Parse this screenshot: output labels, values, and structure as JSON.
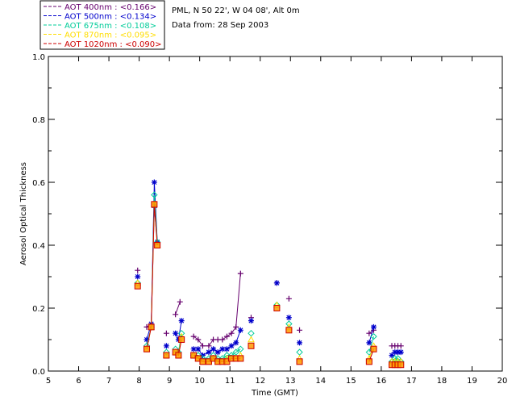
{
  "header": {
    "location": "PML, N 50 22', W 04 08', Alt 0m",
    "date_line": "Data from: 28 Sep 2003"
  },
  "chart_data": {
    "type": "scatter",
    "xlabel": "Time (GMT)",
    "ylabel": "Aerosol Optical Thickness",
    "xlim": [
      5,
      20
    ],
    "ylim": [
      0.0,
      1.0
    ],
    "x_ticks": [
      "5",
      "6",
      "7",
      "8",
      "9",
      "10",
      "11",
      "12",
      "13",
      "14",
      "15",
      "16",
      "17",
      "18",
      "19",
      "20"
    ],
    "y_ticks": [
      "0.0",
      "0.2",
      "0.4",
      "0.6",
      "0.8",
      "1.0"
    ],
    "grid": false,
    "legend_position": "top-left-outside",
    "series": [
      {
        "name": "AOT  400nm : <0.166>",
        "color": "#66006e",
        "marker": "plus",
        "segments": [
          [
            [
              7.95,
              0.32
            ]
          ],
          [
            [
              8.25,
              0.14
            ],
            [
              8.4,
              0.15
            ],
            [
              8.5,
              0.52
            ],
            [
              8.6,
              0.41
            ]
          ],
          [
            [
              8.9,
              0.12
            ]
          ],
          [
            [
              9.2,
              0.18
            ],
            [
              9.35,
              0.22
            ]
          ],
          [
            [
              9.8,
              0.11
            ],
            [
              9.95,
              0.1
            ],
            [
              10.1,
              0.08
            ],
            [
              10.3,
              0.08
            ],
            [
              10.45,
              0.1
            ],
            [
              10.6,
              0.1
            ],
            [
              10.75,
              0.1
            ],
            [
              10.9,
              0.11
            ],
            [
              11.05,
              0.12
            ],
            [
              11.2,
              0.14
            ],
            [
              11.35,
              0.31
            ]
          ],
          [
            [
              11.7,
              0.17
            ]
          ],
          [
            [
              12.55,
              0.28
            ]
          ],
          [
            [
              12.95,
              0.23
            ]
          ],
          [
            [
              13.3,
              0.13
            ]
          ],
          [
            [
              15.6,
              0.12
            ],
            [
              15.75,
              0.13
            ]
          ],
          [
            [
              16.35,
              0.08
            ],
            [
              16.45,
              0.08
            ],
            [
              16.55,
              0.08
            ],
            [
              16.65,
              0.08
            ]
          ]
        ]
      },
      {
        "name": "AOT  500nm : <0.134>",
        "color": "#0000cc",
        "marker": "star",
        "segments": [
          [
            [
              7.95,
              0.3
            ]
          ],
          [
            [
              8.25,
              0.1
            ],
            [
              8.4,
              0.15
            ],
            [
              8.5,
              0.6
            ],
            [
              8.6,
              0.41
            ]
          ],
          [
            [
              8.9,
              0.08
            ]
          ],
          [
            [
              9.2,
              0.12
            ],
            [
              9.3,
              0.1
            ],
            [
              9.4,
              0.16
            ]
          ],
          [
            [
              9.8,
              0.07
            ],
            [
              9.95,
              0.07
            ],
            [
              10.1,
              0.05
            ],
            [
              10.3,
              0.06
            ],
            [
              10.45,
              0.07
            ],
            [
              10.6,
              0.06
            ],
            [
              10.75,
              0.07
            ],
            [
              10.9,
              0.07
            ],
            [
              11.05,
              0.08
            ],
            [
              11.2,
              0.09
            ],
            [
              11.35,
              0.13
            ]
          ],
          [
            [
              11.7,
              0.16
            ]
          ],
          [
            [
              12.55,
              0.28
            ]
          ],
          [
            [
              12.95,
              0.17
            ]
          ],
          [
            [
              13.3,
              0.09
            ]
          ],
          [
            [
              15.6,
              0.09
            ],
            [
              15.75,
              0.14
            ]
          ],
          [
            [
              16.35,
              0.05
            ],
            [
              16.45,
              0.06
            ],
            [
              16.55,
              0.06
            ],
            [
              16.65,
              0.06
            ]
          ]
        ]
      },
      {
        "name": "AOT  675nm : <0.108>",
        "color": "#00cc99",
        "marker": "diamond",
        "segments": [
          [
            [
              7.95,
              0.28
            ]
          ],
          [
            [
              8.25,
              0.08
            ],
            [
              8.4,
              0.14
            ],
            [
              8.5,
              0.56
            ],
            [
              8.6,
              0.41
            ]
          ],
          [
            [
              8.9,
              0.06
            ]
          ],
          [
            [
              9.2,
              0.07
            ],
            [
              9.3,
              0.06
            ],
            [
              9.4,
              0.12
            ]
          ],
          [
            [
              9.8,
              0.05
            ],
            [
              9.95,
              0.05
            ],
            [
              10.1,
              0.04
            ],
            [
              10.3,
              0.04
            ],
            [
              10.45,
              0.05
            ],
            [
              10.6,
              0.04
            ],
            [
              10.75,
              0.04
            ],
            [
              10.9,
              0.05
            ],
            [
              11.05,
              0.05
            ],
            [
              11.2,
              0.06
            ],
            [
              11.35,
              0.07
            ]
          ],
          [
            [
              11.7,
              0.12
            ]
          ],
          [
            [
              12.55,
              0.21
            ]
          ],
          [
            [
              12.95,
              0.15
            ]
          ],
          [
            [
              13.3,
              0.06
            ]
          ],
          [
            [
              15.6,
              0.06
            ],
            [
              15.75,
              0.11
            ]
          ],
          [
            [
              16.35,
              0.03
            ],
            [
              16.45,
              0.04
            ],
            [
              16.55,
              0.04
            ],
            [
              16.65,
              0.03
            ]
          ]
        ]
      },
      {
        "name": "AOT  870nm : <0.095>",
        "color": "#ffdd00",
        "marker": "triangle",
        "segments": [
          [
            [
              7.95,
              0.28
            ]
          ],
          [
            [
              8.25,
              0.07
            ],
            [
              8.4,
              0.14
            ],
            [
              8.5,
              0.53
            ],
            [
              8.6,
              0.4
            ]
          ],
          [
            [
              8.9,
              0.05
            ]
          ],
          [
            [
              9.2,
              0.06
            ],
            [
              9.3,
              0.05
            ],
            [
              9.4,
              0.11
            ]
          ],
          [
            [
              9.8,
              0.05
            ],
            [
              9.95,
              0.04
            ],
            [
              10.1,
              0.03
            ],
            [
              10.3,
              0.03
            ],
            [
              10.45,
              0.04
            ],
            [
              10.6,
              0.03
            ],
            [
              10.75,
              0.03
            ],
            [
              10.9,
              0.04
            ],
            [
              11.05,
              0.04
            ],
            [
              11.2,
              0.04
            ],
            [
              11.35,
              0.05
            ]
          ],
          [
            [
              11.7,
              0.1
            ]
          ],
          [
            [
              12.55,
              0.21
            ]
          ],
          [
            [
              12.95,
              0.14
            ]
          ],
          [
            [
              13.3,
              0.04
            ]
          ],
          [
            [
              15.6,
              0.04
            ],
            [
              15.75,
              0.08
            ]
          ],
          [
            [
              16.35,
              0.03
            ],
            [
              16.45,
              0.03
            ],
            [
              16.55,
              0.03
            ],
            [
              16.65,
              0.03
            ]
          ]
        ]
      },
      {
        "name": "AOT 1020nm : <0.090>",
        "color": "#cc0000",
        "marker": "square",
        "segments": [
          [
            [
              7.95,
              0.27
            ]
          ],
          [
            [
              8.25,
              0.07
            ],
            [
              8.4,
              0.14
            ],
            [
              8.5,
              0.53
            ],
            [
              8.6,
              0.4
            ]
          ],
          [
            [
              8.9,
              0.05
            ]
          ],
          [
            [
              9.2,
              0.06
            ],
            [
              9.3,
              0.05
            ],
            [
              9.4,
              0.1
            ]
          ],
          [
            [
              9.8,
              0.05
            ],
            [
              9.95,
              0.04
            ],
            [
              10.1,
              0.03
            ],
            [
              10.3,
              0.03
            ],
            [
              10.45,
              0.04
            ],
            [
              10.6,
              0.03
            ],
            [
              10.75,
              0.03
            ],
            [
              10.9,
              0.03
            ],
            [
              11.05,
              0.04
            ],
            [
              11.2,
              0.04
            ],
            [
              11.35,
              0.04
            ]
          ],
          [
            [
              11.7,
              0.08
            ]
          ],
          [
            [
              12.55,
              0.2
            ]
          ],
          [
            [
              12.95,
              0.13
            ]
          ],
          [
            [
              13.3,
              0.03
            ]
          ],
          [
            [
              15.6,
              0.03
            ],
            [
              15.75,
              0.07
            ]
          ],
          [
            [
              16.35,
              0.02
            ],
            [
              16.45,
              0.02
            ],
            [
              16.55,
              0.02
            ],
            [
              16.65,
              0.02
            ]
          ]
        ]
      }
    ]
  }
}
